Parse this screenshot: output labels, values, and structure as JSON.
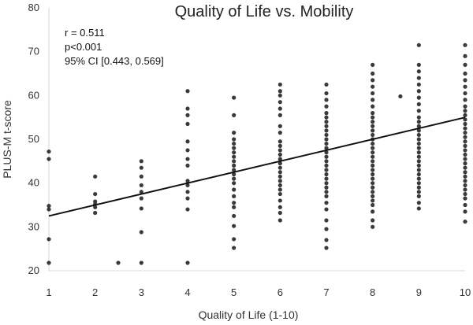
{
  "chart_data": {
    "type": "scatter",
    "title": "Quality of Life vs. Mobility",
    "xlabel": "Quality of Life (1-10)",
    "ylabel": "PLUS-M t-score",
    "xlim": [
      1,
      10
    ],
    "ylim": [
      20,
      80
    ],
    "x_ticks": [
      1,
      2,
      3,
      4,
      5,
      6,
      7,
      8,
      9,
      10
    ],
    "y_ticks": [
      20,
      30,
      40,
      50,
      60,
      70,
      80
    ],
    "grid": false,
    "stats": [
      "r = 0.511",
      "p<0.001",
      "95% CI [0.443, 0.569]"
    ],
    "trendline": {
      "x": [
        1,
        10
      ],
      "y": [
        32.5,
        55.0
      ]
    },
    "point_groups": [
      {
        "x": 1,
        "y": [
          21.8,
          27.2,
          34.0,
          34.8,
          45.5,
          47.2
        ]
      },
      {
        "x": 2,
        "y": [
          33.2,
          34.5,
          35.2,
          35.8,
          37.5,
          41.5
        ]
      },
      {
        "x": 2.5,
        "y": [
          21.8
        ]
      },
      {
        "x": 3,
        "y": [
          21.8,
          28.8,
          34.2,
          36.5,
          38.0,
          39.5,
          41.5,
          43.5,
          45.0
        ]
      },
      {
        "x": 4,
        "y": [
          21.8,
          34.0,
          36.5,
          38.0,
          39.5,
          40.5,
          44.0,
          45.5,
          47.5,
          49.5,
          53.5,
          55.5,
          57.0,
          61.0
        ]
      },
      {
        "x": 5,
        "y": [
          25.2,
          27.2,
          30.2,
          32.5,
          34.5,
          35.5,
          37.0,
          38.5,
          40.0,
          41.0,
          42.0,
          43.0,
          44.0,
          45.0,
          46.0,
          47.0,
          48.0,
          49.0,
          50.0,
          51.5,
          55.5,
          59.5
        ]
      },
      {
        "x": 6,
        "y": [
          31.5,
          33.2,
          34.5,
          36.0,
          37.5,
          38.5,
          39.5,
          40.5,
          41.5,
          42.5,
          43.5,
          44.5,
          45.5,
          46.5,
          47.5,
          48.5,
          49.5,
          51.5,
          53.0,
          55.5,
          57.0,
          58.5,
          60.0,
          61.0,
          62.5
        ]
      },
      {
        "x": 7,
        "y": [
          25.2,
          27.0,
          29.5,
          31.5,
          34.0,
          35.5,
          37.0,
          38.0,
          39.0,
          40.0,
          41.0,
          42.0,
          43.0,
          44.0,
          45.0,
          46.0,
          47.0,
          48.0,
          49.0,
          50.0,
          51.0,
          52.0,
          53.0,
          54.0,
          55.0,
          56.0,
          57.5,
          59.0,
          60.5,
          62.5
        ]
      },
      {
        "x": 8,
        "y": [
          30.0,
          31.5,
          33.5,
          35.0,
          36.0,
          37.0,
          38.0,
          39.0,
          40.0,
          41.0,
          42.0,
          43.0,
          44.0,
          45.0,
          46.0,
          47.0,
          48.0,
          49.0,
          50.0,
          51.0,
          52.0,
          53.0,
          54.0,
          55.0,
          56.0,
          57.5,
          59.0,
          60.5,
          62.0,
          63.5,
          65.0,
          67.0
        ]
      },
      {
        "x": 8.6,
        "y": [
          59.8
        ]
      },
      {
        "x": 9,
        "y": [
          34.2,
          35.5,
          37.0,
          38.0,
          39.0,
          40.0,
          41.0,
          42.0,
          43.0,
          44.0,
          45.0,
          46.0,
          47.0,
          48.0,
          49.0,
          50.0,
          51.0,
          52.0,
          53.0,
          54.0,
          55.0,
          56.5,
          58.0,
          59.5,
          61.0,
          62.5,
          64.0,
          65.5,
          67.0,
          71.5
        ]
      },
      {
        "x": 10,
        "y": [
          31.2,
          33.5,
          35.0,
          36.5,
          37.5,
          38.5,
          39.5,
          40.5,
          41.5,
          42.5,
          43.5,
          44.5,
          45.5,
          46.5,
          47.5,
          48.5,
          49.5,
          50.5,
          51.5,
          52.5,
          53.5,
          54.5,
          55.5,
          56.5,
          57.5,
          59.0,
          60.5,
          62.0,
          63.5,
          65.0,
          67.0,
          69.0,
          71.5
        ]
      }
    ]
  }
}
